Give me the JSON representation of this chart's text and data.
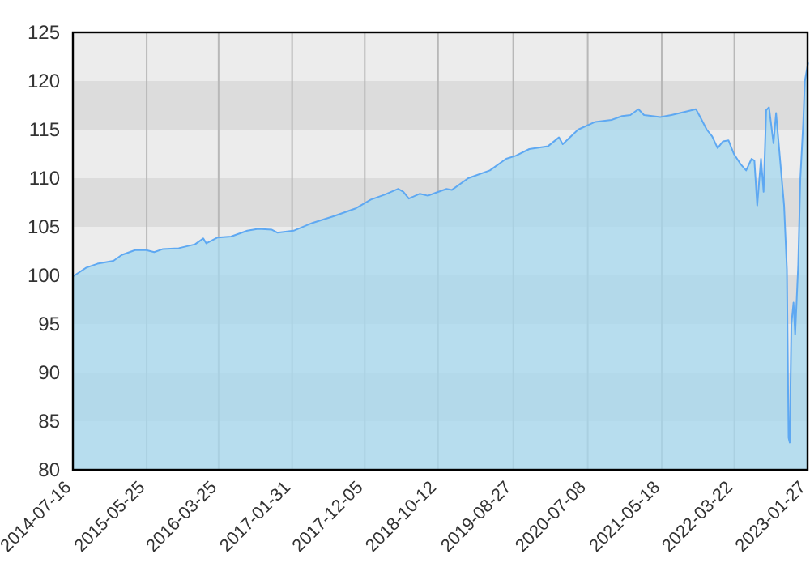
{
  "chart_data": {
    "type": "area",
    "xlim": [
      "2014-07-16",
      "2023-01-30"
    ],
    "ylim": [
      80,
      125
    ],
    "yticks": [
      80,
      85,
      90,
      95,
      100,
      105,
      110,
      115,
      120,
      125
    ],
    "xticks": [
      {
        "value": "2014-07-16",
        "label": "2014-07-16"
      },
      {
        "value": "2015-05-25",
        "label": "2015-05-25"
      },
      {
        "value": "2016-03-25",
        "label": "2016-03-25"
      },
      {
        "value": "2017-01-31",
        "label": "2017-01-31"
      },
      {
        "value": "2017-12-05",
        "label": "2017-12-05"
      },
      {
        "value": "2018-10-12",
        "label": "2018-10-12"
      },
      {
        "value": "2019-08-27",
        "label": "2019-08-27"
      },
      {
        "value": "2020-07-08",
        "label": "2020-07-08"
      },
      {
        "value": "2021-05-18",
        "label": "2021-05-18"
      },
      {
        "value": "2022-03-22",
        "label": "2022-03-22"
      },
      {
        "value": "2023-01-27",
        "label": "2023-01-27"
      }
    ],
    "grid": true,
    "series": [
      {
        "color": "#5ea8f2",
        "x": [
          "2014-07-16",
          "2014-07-23",
          "2014-09-11",
          "2014-10-28",
          "2015-01-04",
          "2015-02-08",
          "2015-04-06",
          "2015-05-23",
          "2015-06-26",
          "2015-07-31",
          "2015-10-08",
          "2015-12-16",
          "2016-01-20",
          "2016-02-02",
          "2016-03-21",
          "2016-05-17",
          "2016-07-25",
          "2016-09-09",
          "2016-11-06",
          "2016-11-29",
          "2017-02-06",
          "2017-04-27",
          "2017-07-28",
          "2017-10-28",
          "2017-12-31",
          "2018-02-27",
          "2018-04-26",
          "2018-05-18",
          "2018-06-10",
          "2018-07-27",
          "2018-08-30",
          "2018-10-02",
          "2018-11-17",
          "2018-12-10",
          "2019-02-17",
          "2019-05-20",
          "2019-07-28",
          "2019-09-06",
          "2019-11-03",
          "2020-01-22",
          "2020-03-08",
          "2020-03-24",
          "2020-05-28",
          "2020-08-09",
          "2020-10-17",
          "2020-12-01",
          "2021-01-05",
          "2021-02-08",
          "2021-03-04",
          "2021-05-12",
          "2021-06-28",
          "2021-09-05",
          "2021-10-10",
          "2021-10-26",
          "2021-11-25",
          "2021-12-18",
          "2022-01-10",
          "2022-02-02",
          "2022-02-25",
          "2022-03-20",
          "2022-04-19",
          "2022-05-11",
          "2022-06-03",
          "2022-06-15",
          "2022-06-27",
          "2022-07-13",
          "2022-07-24",
          "2022-08-04",
          "2022-08-16",
          "2022-09-04",
          "2022-09-15",
          "2022-10-01",
          "2022-10-19",
          "2022-10-31",
          "2022-11-07",
          "2022-11-12",
          "2022-11-19",
          "2022-11-28",
          "2022-12-05",
          "2022-12-18",
          "2022-12-27",
          "2023-01-08",
          "2023-01-15",
          "2023-01-29"
        ],
        "values": [
          99.9,
          100.0,
          100.8,
          101.2,
          101.5,
          102.1,
          102.6,
          102.6,
          102.4,
          102.7,
          102.8,
          103.2,
          103.8,
          103.3,
          103.9,
          104.0,
          104.6,
          104.8,
          104.7,
          104.4,
          104.6,
          105.4,
          106.1,
          106.9,
          107.8,
          108.3,
          108.9,
          108.6,
          107.9,
          108.4,
          108.2,
          108.5,
          108.9,
          108.8,
          110.0,
          110.8,
          112.0,
          112.3,
          113.0,
          113.3,
          114.2,
          113.5,
          115.0,
          115.8,
          116.0,
          116.4,
          116.5,
          117.1,
          116.5,
          116.3,
          116.5,
          116.9,
          117.1,
          116.4,
          115.0,
          114.3,
          113.1,
          113.8,
          113.9,
          112.5,
          111.4,
          110.8,
          112.0,
          111.8,
          107.2,
          112.0,
          108.6,
          117.0,
          117.3,
          113.6,
          116.7,
          112.2,
          107.2,
          100.6,
          83.3,
          82.8,
          95.0,
          97.2,
          93.9,
          101.1,
          110.0,
          115.6,
          120.0,
          121.9
        ]
      }
    ]
  }
}
